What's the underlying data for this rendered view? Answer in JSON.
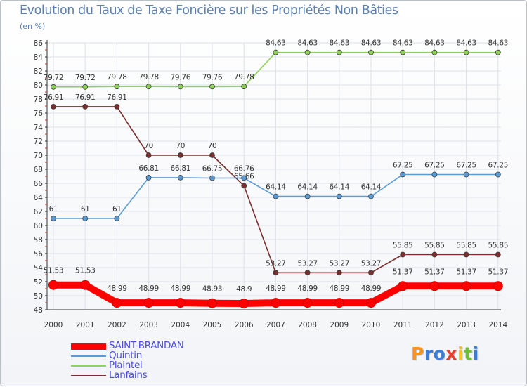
{
  "chart_data": {
    "type": "line",
    "title": "Evolution du Taux de Taxe Foncière sur les Propriétés Non Bâties",
    "subtitle": "(en %)",
    "xlabel": "",
    "ylabel": "",
    "x": [
      "2000",
      "2001",
      "2002",
      "2003",
      "2004",
      "2005",
      "2006",
      "2007",
      "2008",
      "2009",
      "2010",
      "2011",
      "2012",
      "2013",
      "2014"
    ],
    "ylim": [
      48,
      86
    ],
    "yticks": [
      48,
      50,
      52,
      54,
      56,
      58,
      60,
      62,
      64,
      66,
      68,
      70,
      72,
      74,
      76,
      78,
      80,
      82,
      84,
      86
    ],
    "grid": true,
    "legend_position": "bottom-left",
    "series": [
      {
        "name": "SAINT-BRANDAN",
        "color": "#ff0000",
        "values": [
          51.53,
          51.53,
          48.99,
          48.99,
          48.99,
          48.93,
          48.9,
          48.99,
          48.99,
          48.99,
          48.99,
          51.37,
          51.37,
          51.37,
          51.37
        ],
        "labels": [
          "51.53",
          "51.53",
          "48.99",
          "48.99",
          "48.99",
          "48.93",
          "48.9",
          "48.99",
          "48.99",
          "48.99",
          "48.99",
          "51.37",
          "51.37",
          "51.37",
          "51.37"
        ]
      },
      {
        "name": "Quintin",
        "color": "#5b9bd5",
        "values": [
          61,
          61,
          61,
          66.81,
          66.81,
          66.75,
          66.76,
          64.14,
          64.14,
          64.14,
          64.14,
          67.25,
          67.25,
          67.25,
          67.25
        ],
        "labels": [
          "61",
          "61",
          "61",
          "66.81",
          "66.81",
          "66.75",
          "66.76",
          "64.14",
          "64.14",
          "64.14",
          "64.14",
          "67.25",
          "67.25",
          "67.25",
          "67.25"
        ]
      },
      {
        "name": "Plaintel",
        "color": "#8fd15a",
        "values": [
          79.72,
          79.72,
          79.78,
          79.78,
          79.76,
          79.76,
          79.78,
          84.63,
          84.63,
          84.63,
          84.63,
          84.63,
          84.63,
          84.63,
          84.63
        ],
        "labels": [
          "79.72",
          "79.72",
          "79.78",
          "79.78",
          "79.76",
          "79.76",
          "79.78",
          "84.63",
          "84.63",
          "84.63",
          "84.63",
          "84.63",
          "84.63",
          "84.63",
          "84.63"
        ]
      },
      {
        "name": "Lanfains",
        "color": "#7a2e2e",
        "values": [
          76.91,
          76.91,
          76.91,
          70,
          70,
          70,
          65.66,
          53.27,
          53.27,
          53.27,
          53.27,
          55.85,
          55.85,
          55.85,
          55.85
        ],
        "labels": [
          "76.91",
          "76.91",
          "76.91",
          "70",
          "70",
          "70",
          "65.66",
          "53.27",
          "53.27",
          "53.27",
          "53.27",
          "55.85",
          "55.85",
          "55.85",
          "55.85"
        ]
      }
    ]
  },
  "branding": {
    "logo_letters": [
      "P",
      "r",
      "o",
      "x",
      "i",
      "t",
      "i"
    ],
    "logo_colors": [
      "#f7941d",
      "#3b7dd8",
      "#3b7dd8",
      "#e83e2f",
      "#f7c41d",
      "#6dbf3b",
      "#3b7dd8"
    ]
  }
}
